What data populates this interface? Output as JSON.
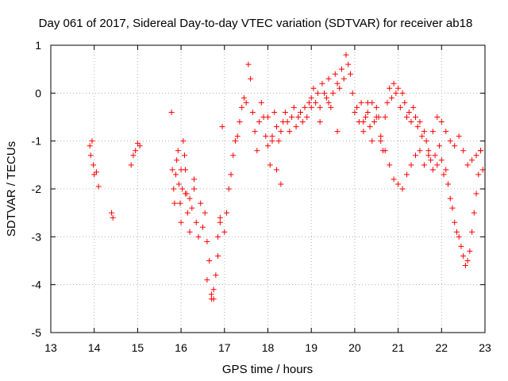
{
  "chart_data": {
    "type": "scatter",
    "title": "Day 061 of 2017, Sidereal Day-to-day VTEC variation (SDTVAR) for receiver ab18",
    "xlabel": "GPS time / hours",
    "ylabel": "SDTVAR / TECUs",
    "xlim": [
      13,
      23
    ],
    "ylim": [
      -5,
      1
    ],
    "xticks": [
      13,
      14,
      15,
      16,
      17,
      18,
      19,
      20,
      21,
      22,
      23
    ],
    "yticks": [
      -5,
      -4,
      -3,
      -2,
      -1,
      0,
      1
    ],
    "grid": true,
    "marker": "+",
    "series": [
      {
        "name": "SDTVAR",
        "color": "#ff0000",
        "x": [
          13.9,
          13.92,
          13.95,
          13.98,
          14.0,
          14.05,
          14.1,
          14.4,
          14.43,
          14.85,
          14.9,
          14.95,
          15.0,
          15.05,
          15.78,
          15.8,
          15.83,
          15.85,
          15.88,
          15.9,
          15.93,
          15.95,
          15.98,
          16.0,
          16.03,
          16.05,
          16.08,
          16.1,
          16.13,
          16.15,
          16.2,
          16.25,
          16.3,
          16.35,
          16.4,
          16.45,
          16.5,
          16.55,
          16.6,
          16.65,
          16.7,
          16.75,
          16.8,
          16.85,
          16.9,
          16.95,
          17.0,
          17.05,
          17.1,
          17.15,
          17.2,
          17.25,
          17.3,
          17.35,
          17.4,
          17.45,
          17.5,
          17.55,
          17.6,
          17.65,
          17.7,
          17.75,
          17.8,
          17.85,
          17.9,
          17.95,
          18.0,
          18.05,
          18.1,
          18.15,
          18.2,
          18.25,
          18.3,
          18.35,
          18.4,
          18.45,
          18.5,
          18.55,
          18.6,
          18.65,
          18.7,
          18.75,
          18.8,
          18.85,
          18.9,
          18.95,
          19.0,
          19.05,
          19.1,
          19.15,
          19.2,
          19.25,
          19.3,
          19.35,
          19.4,
          19.45,
          19.5,
          19.55,
          19.6,
          19.65,
          19.7,
          19.75,
          19.8,
          19.85,
          19.9,
          19.95,
          20.0,
          20.05,
          20.1,
          20.15,
          20.2,
          20.25,
          20.3,
          20.35,
          20.4,
          20.45,
          20.5,
          20.55,
          20.6,
          20.65,
          20.7,
          20.75,
          20.8,
          20.85,
          20.9,
          20.95,
          21.0,
          21.05,
          21.1,
          21.15,
          21.2,
          21.25,
          21.3,
          21.35,
          21.4,
          21.45,
          21.5,
          21.55,
          21.6,
          21.65,
          21.7,
          21.75,
          21.8,
          21.85,
          21.9,
          21.95,
          22.0,
          22.05,
          22.1,
          22.15,
          22.2,
          22.25,
          22.3,
          22.35,
          22.4,
          22.45,
          22.5,
          22.55,
          22.6,
          22.65,
          22.7,
          22.75,
          22.8,
          22.85,
          22.9,
          22.95,
          20.6,
          20.7,
          20.8,
          20.9,
          21.0,
          21.1,
          21.2,
          21.3,
          21.4,
          21.5,
          21.6,
          21.7,
          21.8,
          21.9,
          22.0,
          22.1,
          22.2,
          22.3,
          22.4,
          22.5,
          22.6,
          22.7,
          22.8,
          22.9,
          18.0,
          18.1,
          18.2,
          18.3,
          19.0,
          19.2,
          19.4,
          19.6,
          20.2,
          20.3,
          20.4,
          20.5,
          16.0,
          16.1,
          16.2,
          16.3,
          16.6,
          16.7,
          16.75,
          16.85,
          16.9
        ],
        "y": [
          -1.1,
          -1.3,
          -1.0,
          -1.5,
          -1.7,
          -1.65,
          -1.95,
          -2.5,
          -2.6,
          -1.5,
          -1.3,
          -1.2,
          -1.05,
          -1.1,
          -0.4,
          -1.6,
          -2.0,
          -2.3,
          -1.7,
          -1.4,
          -1.2,
          -1.9,
          -2.3,
          -2.7,
          -2.0,
          -1.0,
          -1.3,
          -1.6,
          -2.1,
          -2.5,
          -2.9,
          -2.4,
          -2.0,
          -2.7,
          -3.0,
          -2.3,
          -2.8,
          -2.5,
          -3.1,
          -3.5,
          -4.3,
          -4.1,
          -3.8,
          -3.4,
          -2.6,
          -0.7,
          -2.9,
          -2.5,
          -2.0,
          -1.7,
          -1.3,
          -1.0,
          -0.9,
          -0.6,
          -0.3,
          -0.1,
          -0.2,
          0.6,
          0.3,
          -0.4,
          -0.8,
          -1.2,
          -0.6,
          -0.2,
          -0.5,
          -0.9,
          -1.1,
          -1.5,
          -0.9,
          -0.4,
          -0.7,
          -1.0,
          -0.8,
          -0.6,
          -0.4,
          -0.6,
          -0.8,
          -0.5,
          -0.3,
          -0.7,
          -0.5,
          -0.4,
          -0.6,
          -0.3,
          -0.5,
          -0.2,
          -0.1,
          0.1,
          -0.2,
          0.0,
          -0.3,
          0.2,
          0.0,
          -0.1,
          0.3,
          -0.3,
          0.0,
          0.4,
          0.2,
          0.1,
          0.5,
          0.3,
          0.8,
          0.6,
          0.4,
          0.0,
          -0.4,
          -0.3,
          -0.6,
          -0.2,
          -0.8,
          -0.5,
          -0.2,
          -0.7,
          -1.0,
          -0.6,
          -0.3,
          -0.5,
          -0.9,
          -1.2,
          -0.5,
          -0.2,
          0.1,
          -0.1,
          0.2,
          0.0,
          0.1,
          -0.3,
          0.0,
          -0.2,
          -0.5,
          -0.4,
          -0.6,
          -0.3,
          -0.5,
          -0.7,
          -0.6,
          -0.9,
          -0.8,
          -1.0,
          -1.2,
          -1.4,
          -1.6,
          -1.3,
          -1.5,
          -1.1,
          -1.4,
          -1.7,
          -1.6,
          -1.9,
          -2.2,
          -2.4,
          -2.7,
          -2.9,
          -3.0,
          -3.2,
          -3.4,
          -3.6,
          -3.5,
          -3.3,
          -2.9,
          -2.5,
          -2.1,
          -1.7,
          -1.2,
          -1.6,
          -1.0,
          -1.2,
          -1.5,
          -1.8,
          -1.9,
          -2.0,
          -1.7,
          -1.5,
          -1.3,
          -1.2,
          -1.5,
          -1.3,
          -0.8,
          -0.5,
          -0.6,
          -0.8,
          -1.0,
          -1.1,
          -0.9,
          -1.2,
          -1.5,
          -1.4,
          -1.3,
          -1.2,
          -0.5,
          -1.0,
          -1.6,
          -1.9,
          -0.3,
          -0.6,
          -0.2,
          -0.8,
          -0.6,
          -0.4,
          -0.2,
          -0.5,
          -1.6,
          -2.1,
          -2.2,
          -1.8,
          -3.9,
          -4.2,
          -4.3,
          -3.0,
          -2.7
        ]
      }
    ]
  }
}
